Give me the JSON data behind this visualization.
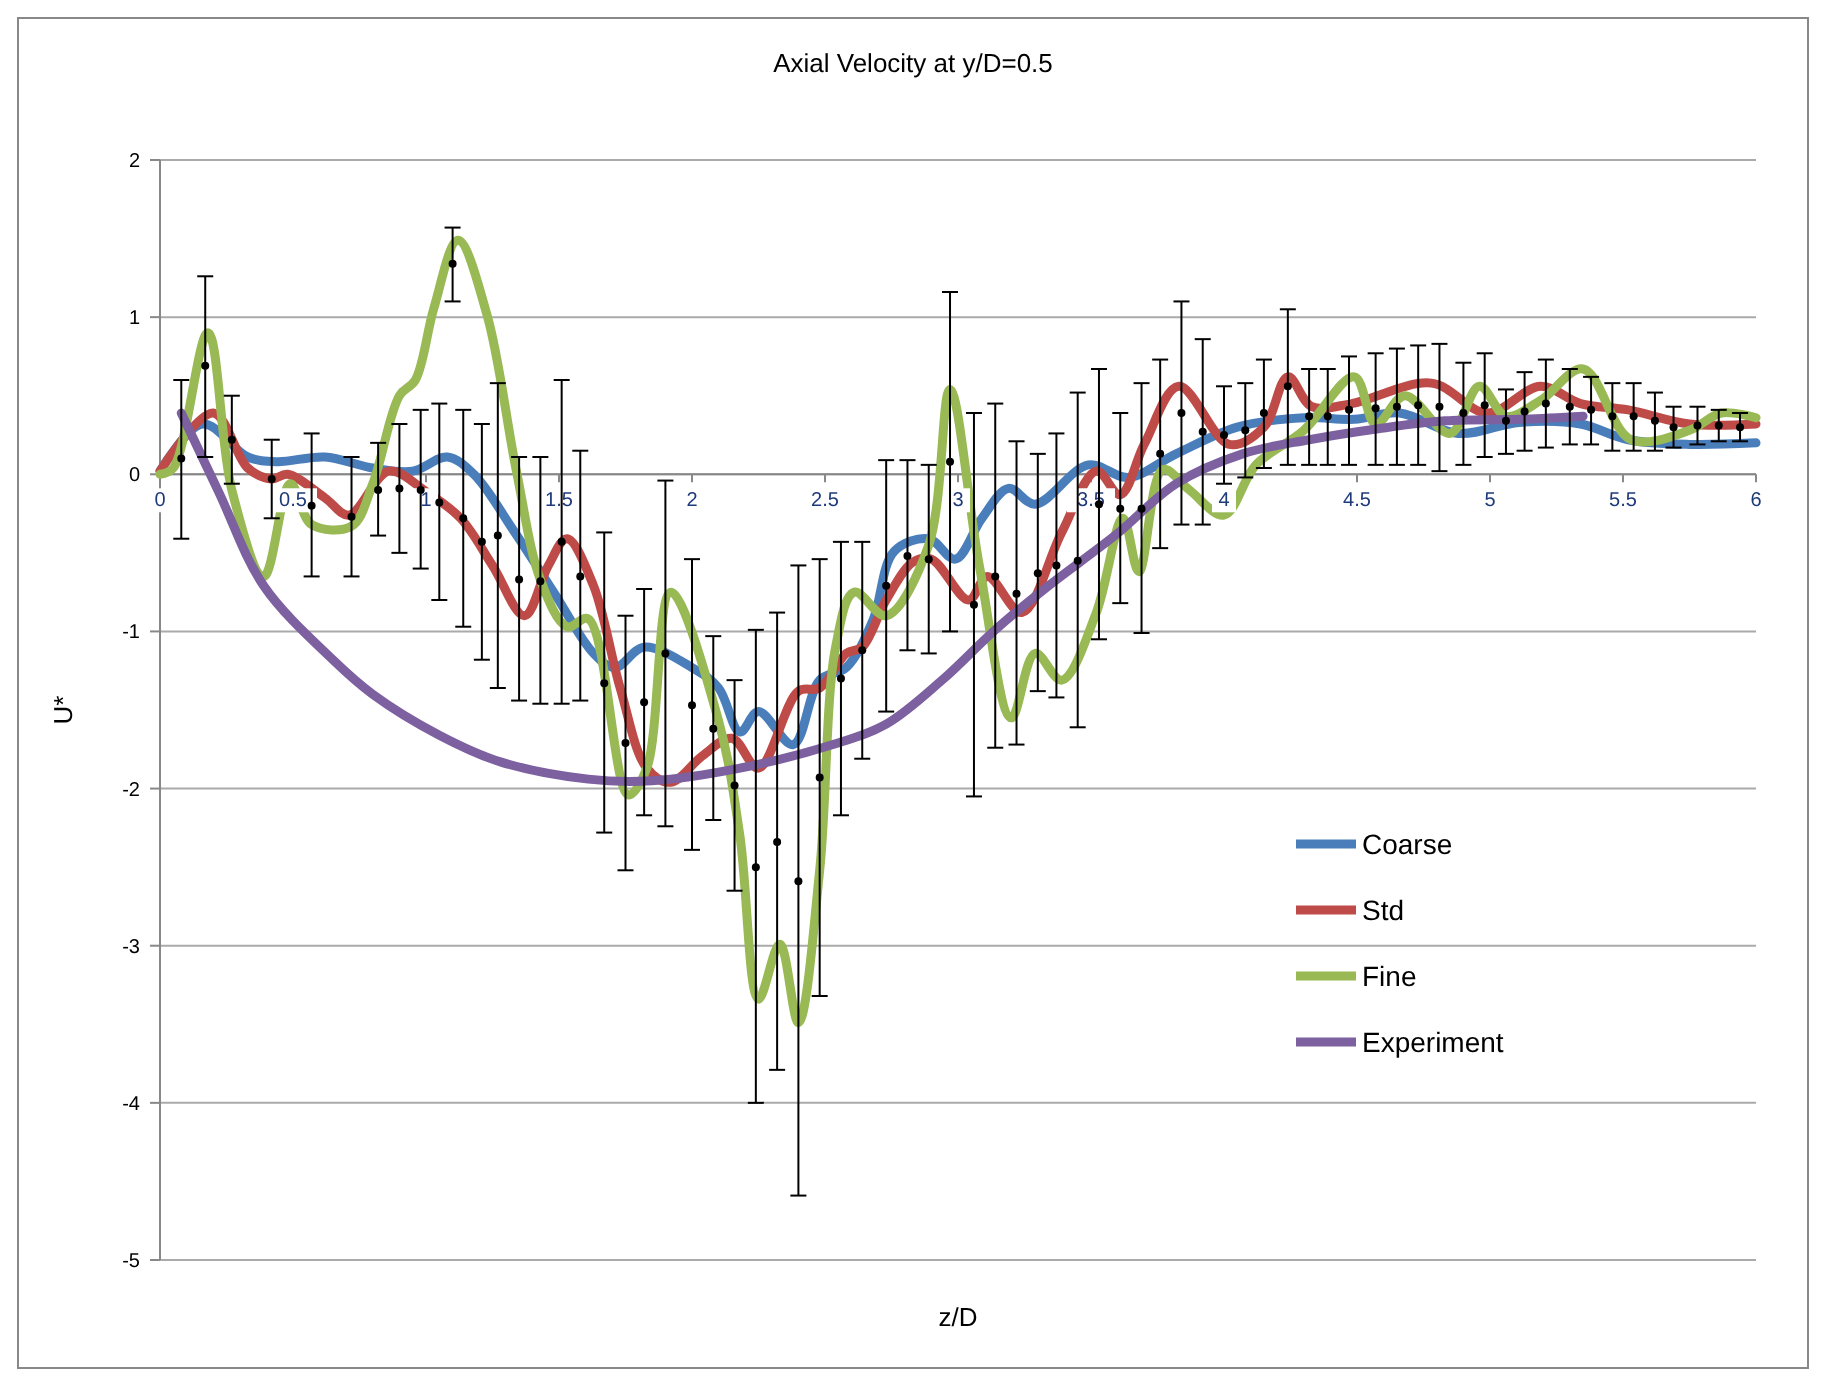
{
  "chart_data": {
    "type": "line",
    "title": "Axial Velocity at  y/D=0.5",
    "xlabel": "z/D",
    "ylabel": "U*",
    "xlim": [
      0,
      6
    ],
    "xticks": [
      0,
      0.5,
      1,
      1.5,
      2,
      2.5,
      3,
      3.5,
      4,
      4.5,
      5,
      5.5,
      6
    ],
    "ylim": [
      -5,
      2
    ],
    "yticks": [
      -5,
      -4,
      -3,
      -2,
      -1,
      0,
      1,
      2
    ],
    "grid": "y",
    "legend": "right",
    "line_style": "solid",
    "series": [
      {
        "name": "Coarse",
        "color": "#4a7ebb",
        "x": [
          0,
          0.16,
          0.33,
          0.44,
          0.62,
          0.8,
          0.95,
          1.08,
          1.18,
          1.33,
          1.48,
          1.63,
          1.71,
          1.82,
          2.0,
          2.1,
          2.18,
          2.25,
          2.38,
          2.48,
          2.58,
          2.68,
          2.76,
          2.89,
          2.99,
          3.09,
          3.19,
          3.29,
          3.49,
          3.64,
          3.82,
          4.05,
          4.3,
          4.49,
          4.66,
          4.88,
          5.11,
          5.34,
          5.52,
          5.75,
          6
        ],
        "values": [
          0.02,
          0.32,
          0.11,
          0.08,
          0.11,
          0.04,
          0.02,
          0.11,
          0,
          -0.36,
          -0.75,
          -1.14,
          -1.23,
          -1.1,
          -1.23,
          -1.36,
          -1.64,
          -1.51,
          -1.72,
          -1.31,
          -1.23,
          -0.93,
          -0.49,
          -0.41,
          -0.54,
          -0.28,
          -0.09,
          -0.19,
          0.06,
          -0.02,
          0.13,
          0.3,
          0.36,
          0.35,
          0.39,
          0.26,
          0.33,
          0.32,
          0.22,
          0.19,
          0.2
        ]
      },
      {
        "name": "Std",
        "color": "#be4b48",
        "x": [
          0,
          0.2,
          0.33,
          0.42,
          0.48,
          0.62,
          0.71,
          0.86,
          1.0,
          1.13,
          1.25,
          1.37,
          1.46,
          1.53,
          1.63,
          1.73,
          1.83,
          1.92,
          2.04,
          2.15,
          2.25,
          2.4,
          2.48,
          2.58,
          2.64,
          2.73,
          2.83,
          2.9,
          3.04,
          3.11,
          3.24,
          3.39,
          3.52,
          3.61,
          3.7,
          3.83,
          4.02,
          4.15,
          4.24,
          4.33,
          4.48,
          4.78,
          4.99,
          5.19,
          5.34,
          5.52,
          5.75,
          6
        ],
        "values": [
          0.02,
          0.39,
          0.04,
          -0.03,
          0,
          -0.15,
          -0.26,
          0.02,
          -0.11,
          -0.28,
          -0.58,
          -0.9,
          -0.58,
          -0.41,
          -0.71,
          -1.36,
          -1.87,
          -1.96,
          -1.79,
          -1.68,
          -1.87,
          -1.38,
          -1.36,
          -1.14,
          -1.1,
          -0.8,
          -0.56,
          -0.54,
          -0.8,
          -0.65,
          -0.88,
          -0.37,
          0.02,
          -0.13,
          0.19,
          0.56,
          0.19,
          0.3,
          0.62,
          0.43,
          0.45,
          0.58,
          0.39,
          0.56,
          0.45,
          0.41,
          0.32,
          0.32
        ]
      },
      {
        "name": "Fine",
        "color": "#98b954",
        "x": [
          0,
          0.05,
          0.18,
          0.27,
          0.39,
          0.49,
          0.57,
          0.72,
          0.8,
          0.9,
          0.96,
          1.03,
          1.12,
          1.23,
          1.34,
          1.43,
          1.53,
          1.61,
          1.76,
          1.83,
          1.92,
          2.1,
          2.18,
          2.25,
          2.33,
          2.4,
          2.48,
          2.54,
          2.61,
          2.73,
          2.89,
          2.97,
          3.08,
          3.2,
          3.29,
          3.39,
          3.52,
          3.62,
          3.68,
          3.77,
          3.87,
          4.0,
          4.12,
          4.3,
          4.49,
          4.57,
          4.68,
          4.85,
          4.96,
          5.06,
          5.19,
          5.35,
          5.53,
          5.75,
          5.87,
          6
        ],
        "values": [
          0,
          0.04,
          0.9,
          -0.1,
          -0.65,
          -0.06,
          -0.32,
          -0.33,
          -0.06,
          0.5,
          0.6,
          1.06,
          1.49,
          1.01,
          0.02,
          -0.67,
          -0.97,
          -0.92,
          -2.04,
          -1.87,
          -0.75,
          -1.57,
          -2.3,
          -3.34,
          -2.99,
          -3.49,
          -2.52,
          -1.1,
          -0.75,
          -0.9,
          -0.45,
          0.54,
          -0.58,
          -1.55,
          -1.14,
          -1.31,
          -0.88,
          -0.28,
          -0.62,
          0.03,
          -0.1,
          -0.26,
          0.06,
          0.28,
          0.62,
          0.32,
          0.5,
          0.26,
          0.56,
          0.37,
          0.47,
          0.67,
          0.22,
          0.28,
          0.39,
          0.36
        ]
      },
      {
        "name": "Experiment",
        "color": "#7d60a0",
        "x": [
          0.08,
          0.22,
          0.39,
          0.65,
          0.8,
          1.05,
          1.28,
          1.61,
          1.85,
          2.18,
          2.53,
          2.73,
          2.94,
          3.14,
          3.34,
          3.59,
          3.82,
          4.07,
          4.32,
          4.58,
          4.83,
          5.11,
          5.35
        ],
        "values": [
          0.39,
          -0.11,
          -0.71,
          -1.18,
          -1.4,
          -1.66,
          -1.83,
          -1.94,
          -1.95,
          -1.87,
          -1.72,
          -1.59,
          -1.31,
          -0.99,
          -0.71,
          -0.39,
          -0.06,
          0.13,
          0.22,
          0.29,
          0.34,
          0.35,
          0.37
        ]
      },
      {
        "type": "scatter",
        "marker": "circle",
        "color": "#000000",
        "x": [
          0.08,
          0.17,
          0.27,
          0.42,
          0.57,
          0.72,
          0.82,
          0.9,
          0.98,
          1.05,
          1.1,
          1.14,
          1.21,
          1.27,
          1.35,
          1.43,
          1.51,
          1.58,
          1.67,
          1.75,
          1.82,
          1.9,
          2.0,
          2.08,
          2.16,
          2.24,
          2.32,
          2.4,
          2.48,
          2.56,
          2.64,
          2.73,
          2.81,
          2.89,
          2.97,
          3.06,
          3.14,
          3.22,
          3.3,
          3.37,
          3.45,
          3.53,
          3.61,
          3.69,
          3.76,
          3.84,
          3.92,
          4.0,
          4.08,
          4.15,
          4.24,
          4.32,
          4.39,
          4.47,
          4.57,
          4.65,
          4.73,
          4.81,
          4.9,
          4.98,
          5.06,
          5.13,
          5.21,
          5.3,
          5.38,
          5.46,
          5.54,
          5.62,
          5.69,
          5.78,
          5.86,
          5.94
        ],
        "values": [
          0.1,
          0.69,
          0.22,
          -0.03,
          -0.2,
          -0.27,
          -0.1,
          -0.09,
          -0.1,
          -0.18,
          1.34,
          -0.28,
          -0.43,
          -0.39,
          -0.67,
          -0.68,
          -0.43,
          -0.65,
          -1.33,
          -1.71,
          -1.45,
          -1.14,
          -1.47,
          -1.62,
          -1.98,
          -2.5,
          -2.34,
          -2.59,
          -1.93,
          -1.3,
          -1.12,
          -0.71,
          -0.52,
          -0.54,
          0.08,
          -0.83,
          -0.65,
          -0.76,
          -0.63,
          -0.58,
          -0.55,
          -0.19,
          -0.22,
          -0.22,
          0.13,
          0.39,
          0.27,
          0.25,
          0.28,
          0.39,
          0.56,
          0.37,
          0.37,
          0.41,
          0.42,
          0.43,
          0.44,
          0.43,
          0.39,
          0.44,
          0.34,
          0.4,
          0.45,
          0.43,
          0.41,
          0.37,
          0.37,
          0.34,
          0.3,
          0.31,
          0.31,
          0.3
        ],
        "errors": [
          [
            -0.41,
            0.6
          ],
          [
            0.11,
            1.26
          ],
          [
            -0.06,
            0.5
          ],
          [
            -0.28,
            0.22
          ],
          [
            -0.65,
            0.26
          ],
          [
            -0.65,
            0.11
          ],
          [
            -0.39,
            0.2
          ],
          [
            -0.5,
            0.32
          ],
          [
            -0.6,
            0.41
          ],
          [
            -0.8,
            0.45
          ],
          [
            1.1,
            1.57
          ],
          [
            -0.97,
            0.41
          ],
          [
            -1.18,
            0.32
          ],
          [
            -1.36,
            0.58
          ],
          [
            -1.44,
            0.11
          ],
          [
            -1.46,
            0.11
          ],
          [
            -1.46,
            0.6
          ],
          [
            -1.44,
            0.15
          ],
          [
            -2.28,
            -0.37
          ],
          [
            -2.52,
            -0.9
          ],
          [
            -2.17,
            -0.73
          ],
          [
            -2.24,
            -0.04
          ],
          [
            -2.39,
            -0.54
          ],
          [
            -2.2,
            -1.03
          ],
          [
            -2.65,
            -1.31
          ],
          [
            -4.0,
            -0.99
          ],
          [
            -3.79,
            -0.88
          ],
          [
            -4.59,
            -0.58
          ],
          [
            -3.32,
            -0.54
          ],
          [
            -2.17,
            -0.43
          ],
          [
            -1.81,
            -0.43
          ],
          [
            -1.51,
            0.09
          ],
          [
            -1.12,
            0.09
          ],
          [
            -1.14,
            0.06
          ],
          [
            -1.0,
            1.16
          ],
          [
            -2.05,
            0.39
          ],
          [
            -1.74,
            0.45
          ],
          [
            -1.72,
            0.21
          ],
          [
            -1.38,
            0.13
          ],
          [
            -1.42,
            0.26
          ],
          [
            -1.61,
            0.52
          ],
          [
            -1.05,
            0.67
          ],
          [
            -0.82,
            0.39
          ],
          [
            -1.01,
            0.58
          ],
          [
            -0.47,
            0.73
          ],
          [
            -0.32,
            1.1
          ],
          [
            -0.32,
            0.86
          ],
          [
            -0.06,
            0.56
          ],
          [
            -0.02,
            0.58
          ],
          [
            0.04,
            0.73
          ],
          [
            0.06,
            1.05
          ],
          [
            0.06,
            0.67
          ],
          [
            0.06,
            0.67
          ],
          [
            0.06,
            0.75
          ],
          [
            0.06,
            0.77
          ],
          [
            0.06,
            0.8
          ],
          [
            0.06,
            0.82
          ],
          [
            0.02,
            0.83
          ],
          [
            0.06,
            0.71
          ],
          [
            0.11,
            0.77
          ],
          [
            0.13,
            0.54
          ],
          [
            0.15,
            0.65
          ],
          [
            0.17,
            0.73
          ],
          [
            0.19,
            0.67
          ],
          [
            0.19,
            0.62
          ],
          [
            0.15,
            0.58
          ],
          [
            0.15,
            0.58
          ],
          [
            0.15,
            0.52
          ],
          [
            0.17,
            0.43
          ],
          [
            0.19,
            0.43
          ],
          [
            0.21,
            0.41
          ],
          [
            0.21,
            0.39
          ]
        ]
      }
    ]
  }
}
